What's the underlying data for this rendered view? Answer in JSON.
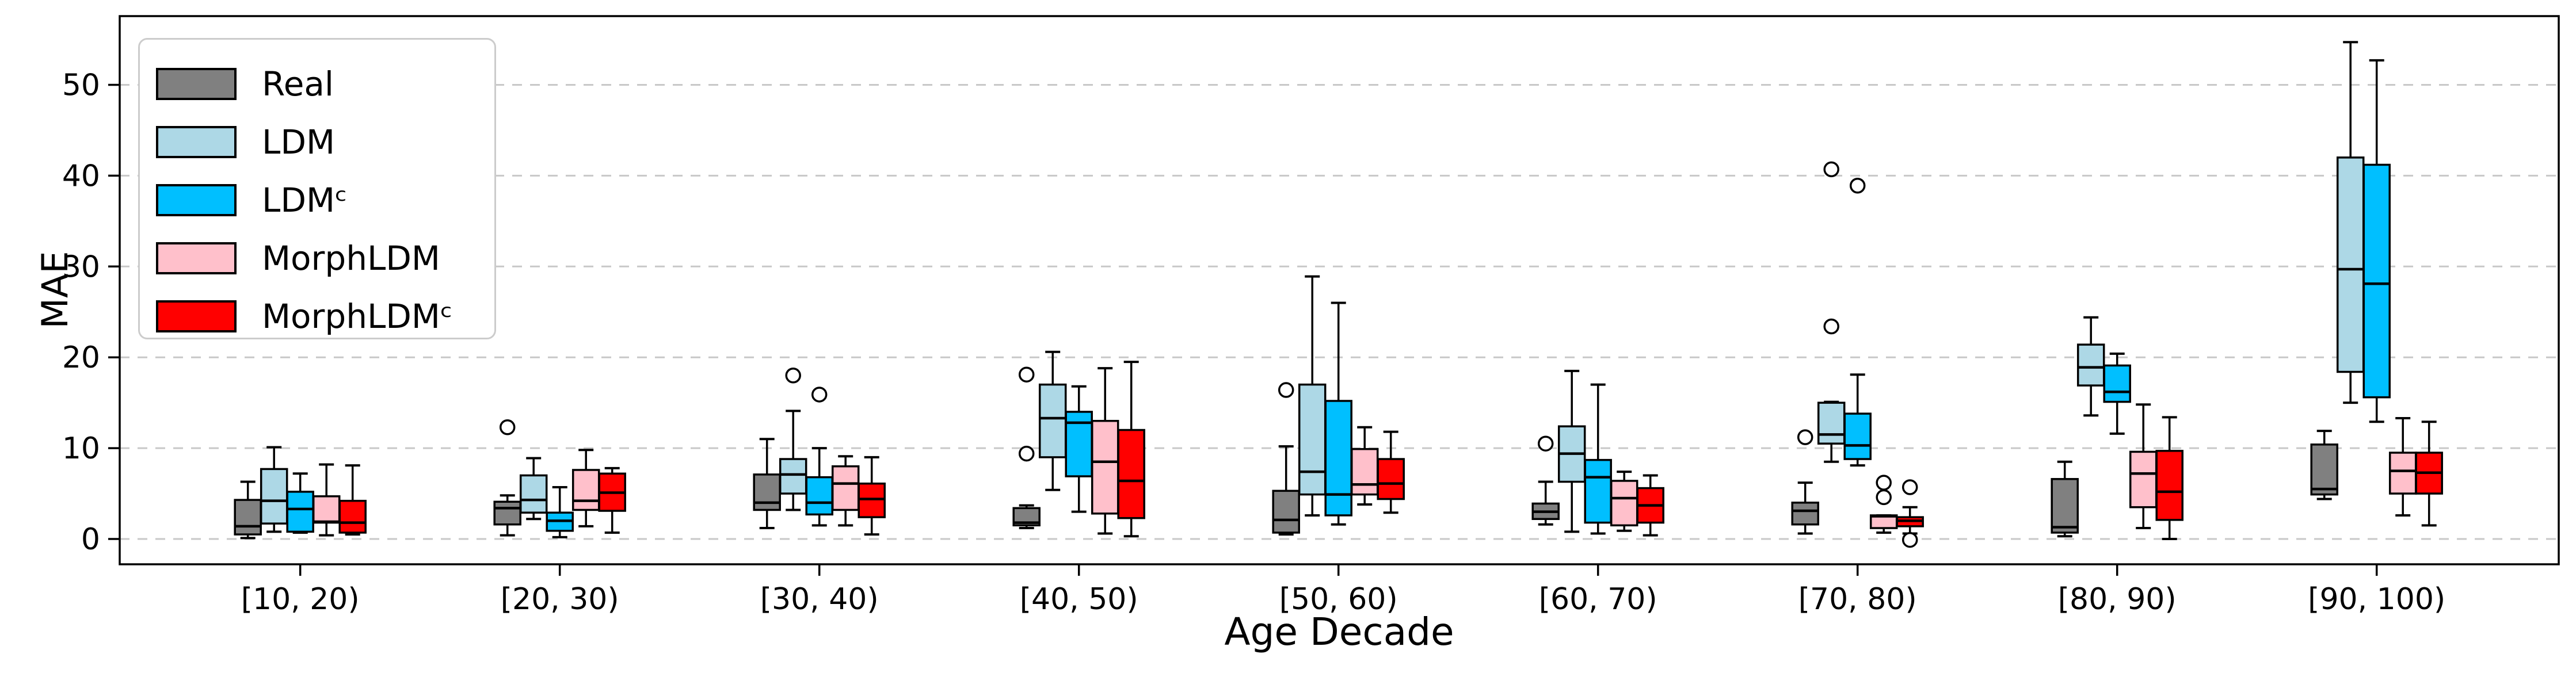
{
  "figure": {
    "background": "#ffffff",
    "plot_border_color": "#000000"
  },
  "axes": {
    "ylabel": "MAE",
    "xlabel": "Age Decade",
    "yticks": [
      0,
      10,
      20,
      30,
      40,
      50
    ],
    "ylim": [
      -2.8,
      57.6
    ],
    "grid": "horizontal-dashed",
    "grid_color": "#c8c8c8"
  },
  "legend": {
    "position": "upper-left",
    "items": [
      {
        "label": "Real",
        "color": "#808080"
      },
      {
        "label": "LDM",
        "color": "#ADD8E6"
      },
      {
        "label": "LDMᶜ",
        "color": "#00BFFF"
      },
      {
        "label": "MorphLDM",
        "color": "#FFC0CB"
      },
      {
        "label": "MorphLDMᶜ",
        "color": "#FF0000"
      }
    ]
  },
  "chart_data": {
    "type": "boxplot",
    "title": "",
    "xlabel": "Age Decade",
    "ylabel": "MAE",
    "categories": [
      "[10, 20)",
      "[20, 30)",
      "[30, 40)",
      "[40, 50)",
      "[50, 60)",
      "[60, 70)",
      "[70, 80)",
      "[80, 90)",
      "[90, 100)"
    ],
    "stat_keys": [
      "whisker_low",
      "q1",
      "median",
      "q3",
      "whisker_high"
    ],
    "series": [
      {
        "name": "Real",
        "color": "#808080",
        "boxes": [
          [
            0.1,
            0.5,
            1.4,
            4.3,
            6.3
          ],
          [
            0.4,
            1.6,
            3.4,
            4.1,
            4.8
          ],
          [
            1.2,
            3.2,
            4.0,
            7.1,
            11.0
          ],
          [
            1.2,
            1.5,
            1.8,
            3.4,
            3.7
          ],
          [
            0.5,
            0.7,
            2.1,
            5.3,
            10.2
          ],
          [
            1.6,
            2.2,
            3.0,
            3.9,
            6.3
          ],
          [
            0.6,
            1.6,
            3.1,
            4.0,
            6.2
          ],
          [
            0.3,
            0.7,
            1.3,
            6.6,
            8.5
          ],
          [
            4.4,
            4.9,
            5.5,
            10.4,
            11.9
          ]
        ],
        "fliers": [
          [],
          [
            12.3
          ],
          [],
          [
            18.1,
            9.4
          ],
          [
            16.4
          ],
          [
            10.5
          ],
          [
            11.2
          ],
          [],
          []
        ]
      },
      {
        "name": "LDM",
        "color": "#ADD8E6",
        "boxes": [
          [
            0.8,
            1.7,
            4.2,
            7.7,
            10.1
          ],
          [
            2.2,
            2.9,
            4.3,
            7.0,
            8.9
          ],
          [
            3.2,
            5.0,
            7.1,
            8.8,
            14.1
          ],
          [
            5.4,
            9.0,
            13.3,
            17.0,
            20.6
          ],
          [
            2.6,
            4.9,
            7.4,
            17.0,
            28.9
          ],
          [
            0.8,
            6.3,
            9.4,
            12.4,
            18.5
          ],
          [
            8.5,
            10.5,
            11.5,
            15.0,
            15.1
          ],
          [
            13.6,
            16.9,
            18.9,
            21.4,
            24.4
          ],
          [
            15.0,
            18.4,
            29.7,
            42.0,
            54.7
          ]
        ],
        "fliers": [
          [],
          [],
          [
            18.0
          ],
          [],
          [],
          [],
          [
            40.7,
            23.4
          ],
          [],
          []
        ]
      },
      {
        "name": "LDMᶜ",
        "color": "#00BFFF",
        "boxes": [
          [
            0.7,
            0.8,
            3.3,
            5.2,
            7.2
          ],
          [
            0.2,
            0.9,
            2.0,
            2.9,
            5.7
          ],
          [
            1.5,
            2.7,
            4.0,
            6.8,
            10.0
          ],
          [
            3.0,
            6.9,
            12.8,
            14.0,
            16.8
          ],
          [
            1.6,
            2.6,
            4.9,
            15.2,
            26.0
          ],
          [
            0.6,
            1.8,
            6.8,
            8.7,
            17.0
          ],
          [
            8.1,
            8.8,
            10.3,
            13.8,
            18.1
          ],
          [
            11.6,
            15.1,
            16.2,
            19.1,
            20.4
          ],
          [
            12.9,
            15.6,
            28.1,
            41.2,
            52.7
          ]
        ],
        "fliers": [
          [],
          [],
          [
            15.9
          ],
          [],
          [],
          [],
          [
            38.9
          ],
          [],
          []
        ]
      },
      {
        "name": "MorphLDM",
        "color": "#FFC0CB",
        "boxes": [
          [
            0.4,
            1.8,
            1.9,
            4.7,
            8.2
          ],
          [
            1.4,
            3.2,
            4.2,
            7.6,
            9.8
          ],
          [
            1.5,
            3.2,
            6.1,
            8.0,
            9.1
          ],
          [
            0.6,
            2.8,
            8.5,
            13.0,
            18.8
          ],
          [
            3.8,
            4.9,
            6.0,
            9.9,
            12.3
          ],
          [
            0.9,
            1.5,
            4.5,
            6.4,
            7.4
          ],
          [
            0.7,
            1.2,
            2.5,
            2.6,
            2.6
          ],
          [
            1.2,
            3.5,
            7.2,
            9.6,
            14.8
          ],
          [
            2.6,
            5.0,
            7.5,
            9.5,
            13.3
          ]
        ],
        "fliers": [
          [],
          [],
          [],
          [],
          [],
          [],
          [
            6.2,
            4.6
          ],
          [],
          []
        ]
      },
      {
        "name": "MorphLDMᶜ",
        "color": "#FF0000",
        "boxes": [
          [
            0.5,
            0.7,
            1.8,
            4.2,
            8.1
          ],
          [
            0.7,
            3.1,
            5.1,
            7.2,
            7.8
          ],
          [
            0.5,
            2.4,
            4.4,
            6.1,
            9.0
          ],
          [
            0.3,
            2.3,
            6.4,
            12.0,
            19.5
          ],
          [
            2.9,
            4.4,
            6.1,
            8.8,
            11.8
          ],
          [
            0.4,
            1.8,
            3.7,
            5.6,
            7.0
          ],
          [
            0.6,
            1.4,
            2.0,
            2.4,
            3.5
          ],
          [
            0.0,
            2.1,
            5.2,
            9.7,
            13.4
          ],
          [
            1.5,
            5.0,
            7.3,
            9.5,
            12.9
          ]
        ],
        "fliers": [
          [],
          [],
          [],
          [],
          [],
          [],
          [
            5.7,
            -0.1
          ],
          [],
          []
        ]
      }
    ],
    "legend_position": "upper left",
    "grid": "horizontal dashed"
  }
}
